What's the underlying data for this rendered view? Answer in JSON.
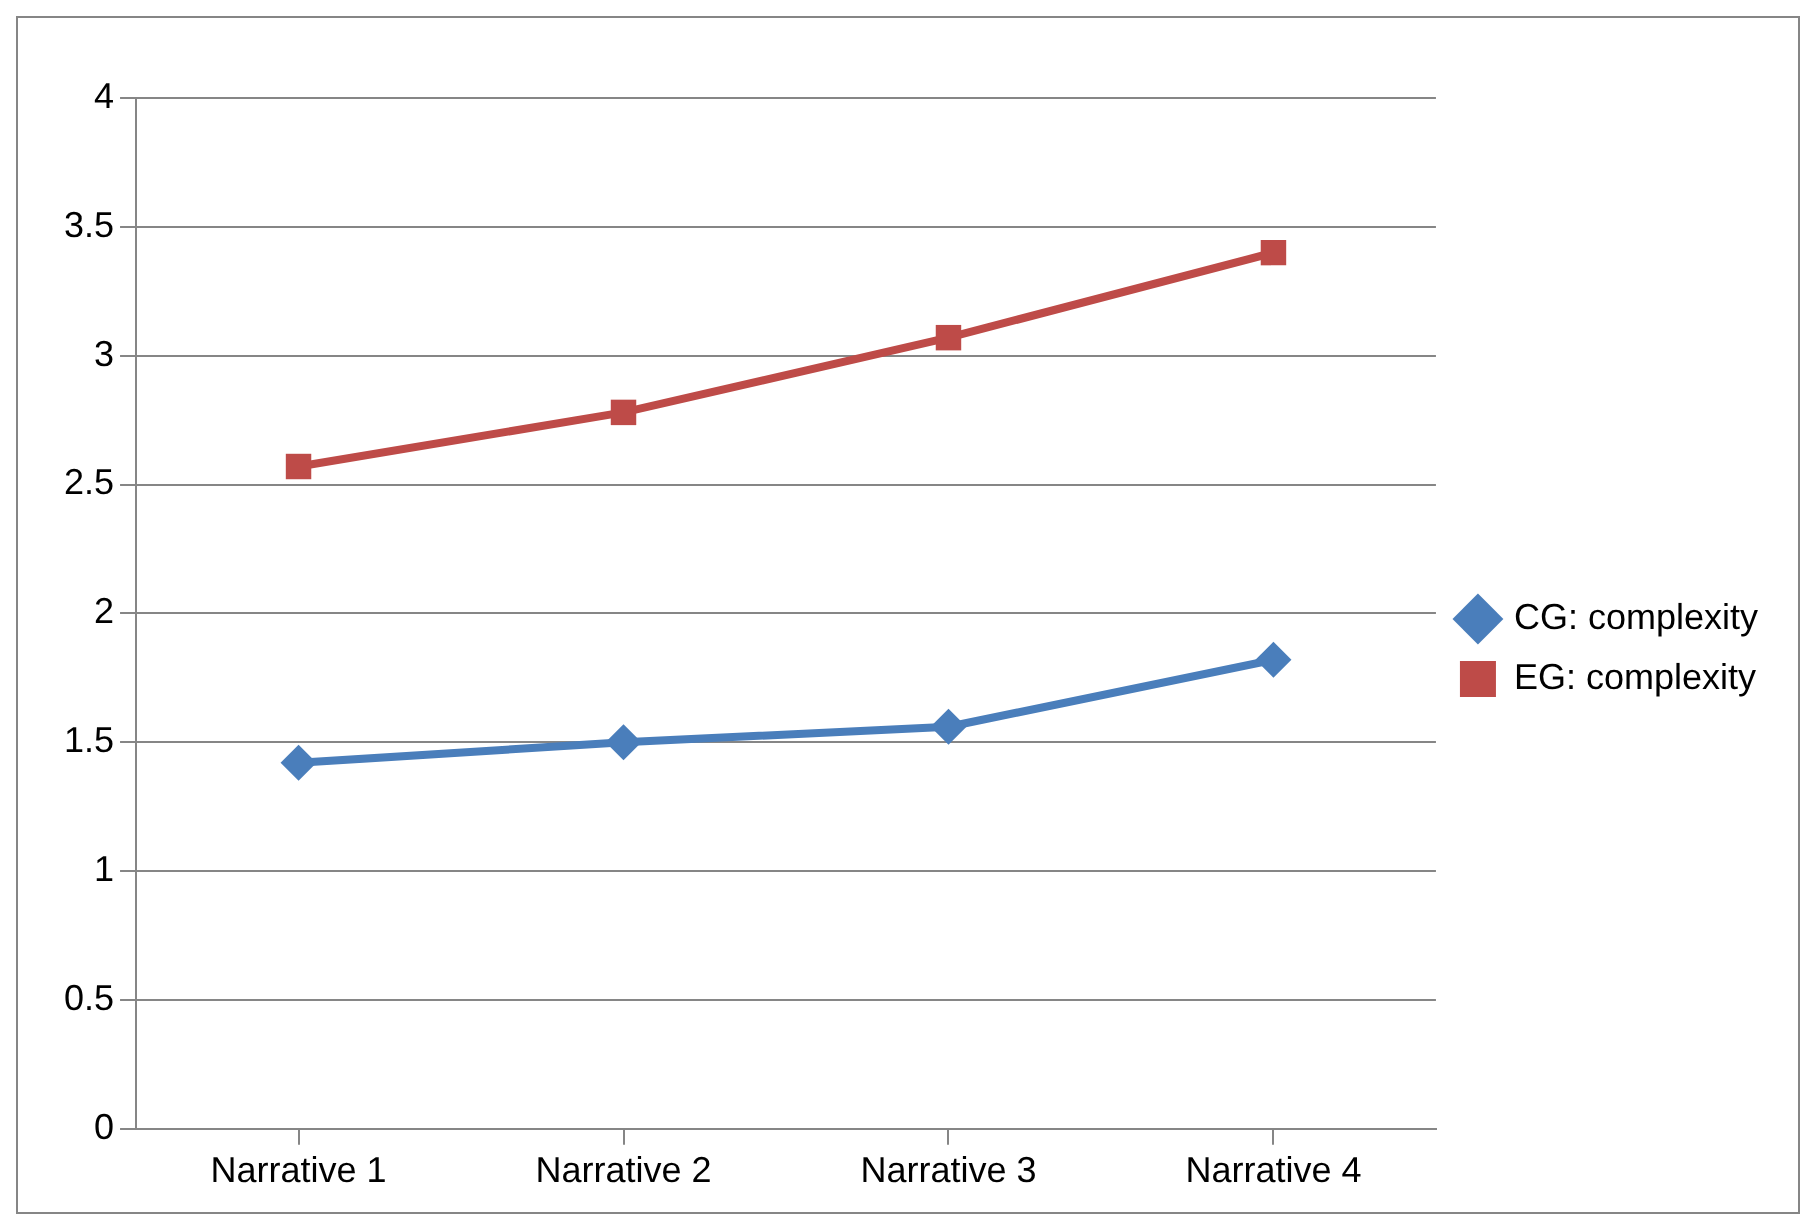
{
  "chart_data": {
    "type": "line",
    "categories": [
      "Narrative 1",
      "Narrative 2",
      "Narrative 3",
      "Narrative 4"
    ],
    "series": [
      {
        "name": "CG: complexity",
        "color": "#4a7ebb",
        "values": [
          1.42,
          1.5,
          1.56,
          1.82
        ],
        "marker": "diamond"
      },
      {
        "name": "EG: complexity",
        "color": "#be4b48",
        "values": [
          2.57,
          2.78,
          3.07,
          3.4
        ],
        "marker": "square"
      }
    ],
    "ylim": [
      0,
      4
    ],
    "yticks": [
      0,
      0.5,
      1,
      1.5,
      2,
      2.5,
      3,
      3.5,
      4
    ],
    "grid": "y",
    "legend": "right",
    "line_style": "solid"
  }
}
